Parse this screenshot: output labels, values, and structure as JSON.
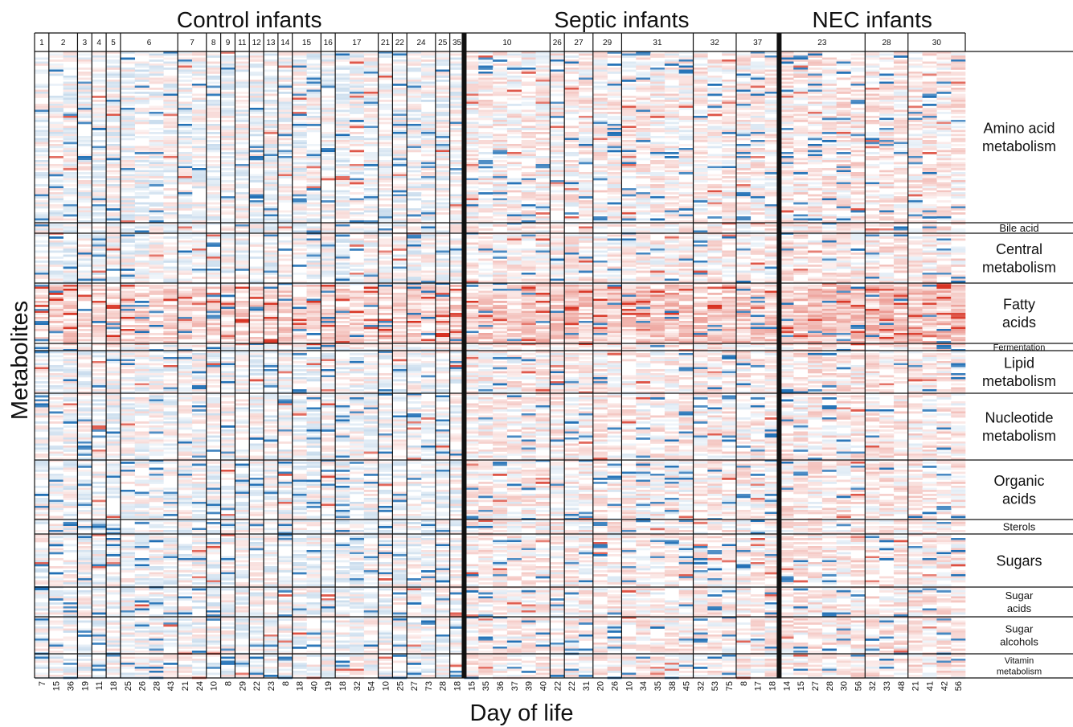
{
  "chart_data": {
    "type": "heatmap",
    "title": "",
    "xlabel": "Day of life",
    "ylabel": "Metabolites",
    "groups": [
      {
        "name": "Control infants",
        "infants": [
          "1",
          "2",
          "3",
          "4",
          "5",
          "6",
          "7",
          "8",
          "9",
          "11",
          "12",
          "13",
          "14",
          "15",
          "16",
          "17",
          "21",
          "22",
          "24",
          "25",
          "35"
        ]
      },
      {
        "name": "Septic infants",
        "infants": [
          "10",
          "26",
          "27",
          "29",
          "31",
          "32",
          "37"
        ]
      },
      {
        "name": "NEC infants",
        "infants": [
          "23",
          "28",
          "30"
        ]
      }
    ],
    "infants": [
      {
        "id": "1",
        "group": "Control infants",
        "days": [
          "7"
        ]
      },
      {
        "id": "2",
        "group": "Control infants",
        "days": [
          "15",
          "36"
        ]
      },
      {
        "id": "3",
        "group": "Control infants",
        "days": [
          "19"
        ]
      },
      {
        "id": "4",
        "group": "Control infants",
        "days": [
          "11"
        ]
      },
      {
        "id": "5",
        "group": "Control infants",
        "days": [
          "18"
        ]
      },
      {
        "id": "6",
        "group": "Control infants",
        "days": [
          "25",
          "26",
          "28",
          "43"
        ]
      },
      {
        "id": "7",
        "group": "Control infants",
        "days": [
          "21",
          "24"
        ]
      },
      {
        "id": "8",
        "group": "Control infants",
        "days": [
          "10"
        ]
      },
      {
        "id": "9",
        "group": "Control infants",
        "days": [
          "8"
        ]
      },
      {
        "id": "11",
        "group": "Control infants",
        "days": [
          "29"
        ]
      },
      {
        "id": "12",
        "group": "Control infants",
        "days": [
          "22"
        ]
      },
      {
        "id": "13",
        "group": "Control infants",
        "days": [
          "23"
        ]
      },
      {
        "id": "14",
        "group": "Control infants",
        "days": [
          "8"
        ]
      },
      {
        "id": "15",
        "group": "Control infants",
        "days": [
          "18",
          "40"
        ]
      },
      {
        "id": "16",
        "group": "Control infants",
        "days": [
          "19"
        ]
      },
      {
        "id": "17",
        "group": "Control infants",
        "days": [
          "18",
          "32",
          "54"
        ]
      },
      {
        "id": "21",
        "group": "Control infants",
        "days": [
          "10"
        ]
      },
      {
        "id": "22",
        "group": "Control infants",
        "days": [
          "25"
        ]
      },
      {
        "id": "24",
        "group": "Control infants",
        "days": [
          "27",
          "73"
        ]
      },
      {
        "id": "25",
        "group": "Control infants",
        "days": [
          "28"
        ]
      },
      {
        "id": "35",
        "group": "Control infants",
        "days": [
          "18"
        ]
      },
      {
        "id": "10",
        "group": "Septic infants",
        "days": [
          "15",
          "35",
          "36",
          "37",
          "39",
          "40"
        ]
      },
      {
        "id": "26",
        "group": "Septic infants",
        "days": [
          "22"
        ]
      },
      {
        "id": "27",
        "group": "Septic infants",
        "days": [
          "22",
          "31"
        ]
      },
      {
        "id": "29",
        "group": "Septic infants",
        "days": [
          "20",
          "26"
        ]
      },
      {
        "id": "31",
        "group": "Septic infants",
        "days": [
          "10",
          "34",
          "35",
          "38",
          "45"
        ]
      },
      {
        "id": "32",
        "group": "Septic infants",
        "days": [
          "32",
          "53",
          "75"
        ]
      },
      {
        "id": "37",
        "group": "Septic infants",
        "days": [
          "8",
          "17",
          "18"
        ]
      },
      {
        "id": "23",
        "group": "NEC infants",
        "days": [
          "14",
          "15",
          "27",
          "28",
          "30",
          "56"
        ]
      },
      {
        "id": "28",
        "group": "NEC infants",
        "days": [
          "32",
          "33",
          "48"
        ]
      },
      {
        "id": "30",
        "group": "NEC infants",
        "days": [
          "21",
          "41",
          "42",
          "56"
        ]
      }
    ],
    "metabolite_classes": [
      {
        "label": [
          "Amino acid",
          "metabolism"
        ],
        "size": "large"
      },
      {
        "label": [
          "Bile acid"
        ],
        "size": "small"
      },
      {
        "label": [
          "Central",
          "metabolism"
        ],
        "size": "large"
      },
      {
        "label": [
          "Fatty",
          "acids"
        ],
        "size": "large"
      },
      {
        "label": [
          "Fermentation"
        ],
        "size": "tiny"
      },
      {
        "label": [
          "Lipid",
          "metabolism"
        ],
        "size": "large"
      },
      {
        "label": [
          "Nucleotide",
          "metabolism"
        ],
        "size": "large"
      },
      {
        "label": [
          "Organic",
          "acids"
        ],
        "size": "large"
      },
      {
        "label": [
          "Sterols"
        ],
        "size": "small"
      },
      {
        "label": [
          "Sugars"
        ],
        "size": "large"
      },
      {
        "label": [
          "Sugar",
          "acids"
        ],
        "size": "small"
      },
      {
        "label": [
          "Sugar",
          "alcohols"
        ],
        "size": "small"
      },
      {
        "label": [
          "Vitamin",
          "metabolism"
        ],
        "size": "tiny"
      }
    ],
    "color_scale": {
      "low": "#1f6fb5",
      "mid": "#ffffff",
      "high": "#d7301f"
    }
  }
}
